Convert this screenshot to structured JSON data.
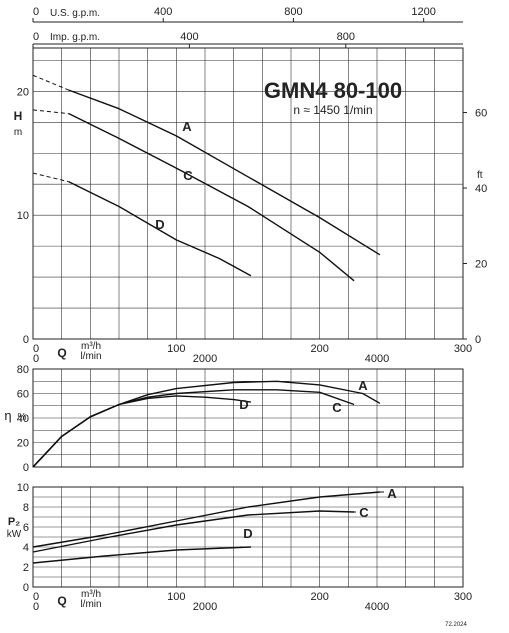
{
  "title": "GMN4 80-100",
  "subtitle": "n ≈ 1450 1/min",
  "code": "72.2024",
  "top_axes": {
    "usgpm": {
      "label": "U.S. g.p.m.",
      "ticks": [
        "0",
        "400",
        "800",
        "1200"
      ],
      "values": [
        0,
        400,
        800,
        1200
      ]
    },
    "impgpm": {
      "label": "Imp. g.p.m.",
      "ticks": [
        "0",
        "400",
        "800"
      ],
      "values": [
        0,
        400,
        800
      ]
    }
  },
  "q_axis": {
    "label": "Q",
    "unit_m3h": "m³/h",
    "unit_lmin": "l/min",
    "m3h_ticks": [
      "0",
      "100",
      "200",
      "300"
    ],
    "m3h_values": [
      0,
      100,
      200,
      300
    ],
    "lmin_ticks": [
      "0",
      "2000",
      "4000"
    ],
    "lmin_values": [
      0,
      2000,
      4000
    ]
  },
  "chart_data": [
    {
      "type": "line",
      "panel": "head",
      "ylabel_symbol": "H",
      "ylabel_unit": "m",
      "ylim": [
        0,
        23.5
      ],
      "xlim": [
        0,
        300
      ],
      "y_ticks": [
        "0",
        "10",
        "20"
      ],
      "y_values": [
        0,
        10,
        20
      ],
      "y2_label": "ft",
      "y2_ticks": [
        "0",
        "20",
        "40",
        "60"
      ],
      "y2_values": [
        0,
        20,
        40,
        60
      ],
      "grid": true,
      "series": [
        {
          "name": "A",
          "x": [
            25,
            60,
            100,
            150,
            200,
            242
          ],
          "y": [
            20.1,
            18.6,
            16.4,
            13.1,
            9.8,
            6.8
          ],
          "dashed_from_x": 0,
          "dashed_from_y": 21.3
        },
        {
          "name": "C",
          "x": [
            25,
            60,
            100,
            150,
            200,
            224
          ],
          "y": [
            18.2,
            16.2,
            13.8,
            10.7,
            7.0,
            4.7
          ],
          "dashed_from_x": 0,
          "dashed_from_y": 18.5
        },
        {
          "name": "D",
          "x": [
            25,
            60,
            100,
            130,
            152
          ],
          "y": [
            12.7,
            10.7,
            8.0,
            6.5,
            5.1
          ],
          "dashed_from_x": 0,
          "dashed_from_y": 13.4
        }
      ]
    },
    {
      "type": "line",
      "panel": "efficiency",
      "ylabel_symbol": "η",
      "ylabel_unit": "%",
      "ylim": [
        0,
        80
      ],
      "xlim": [
        0,
        300
      ],
      "y_ticks": [
        "0",
        "20",
        "40",
        "60",
        "80"
      ],
      "y_values": [
        0,
        20,
        40,
        60,
        80
      ],
      "grid": true,
      "series": [
        {
          "name": "A",
          "x": [
            0,
            20,
            40,
            60,
            80,
            100,
            140,
            170,
            200,
            230,
            242
          ],
          "y": [
            0,
            25,
            41,
            51,
            59,
            64,
            69,
            70,
            67,
            60,
            52
          ]
        },
        {
          "name": "C",
          "x": [
            0,
            20,
            40,
            60,
            80,
            100,
            140,
            170,
            200,
            224
          ],
          "y": [
            0,
            25,
            41,
            51,
            57,
            60,
            63,
            63,
            61,
            51
          ]
        },
        {
          "name": "D",
          "x": [
            0,
            20,
            40,
            60,
            80,
            100,
            120,
            140,
            152
          ],
          "y": [
            0,
            25,
            41,
            51,
            56,
            58,
            57,
            55,
            53
          ]
        }
      ]
    },
    {
      "type": "line",
      "panel": "power",
      "ylabel_symbol": "P₂",
      "ylabel_unit": "kW",
      "ylim": [
        0,
        10
      ],
      "xlim": [
        0,
        300
      ],
      "y_ticks": [
        "0",
        "2",
        "4",
        "6",
        "8",
        "10"
      ],
      "y_values": [
        0,
        2,
        4,
        6,
        8,
        10
      ],
      "grid": true,
      "series": [
        {
          "name": "A",
          "x": [
            0,
            50,
            100,
            150,
            200,
            242
          ],
          "y": [
            4.0,
            5.2,
            6.6,
            8.0,
            9.0,
            9.5
          ]
        },
        {
          "name": "C",
          "x": [
            0,
            50,
            100,
            150,
            200,
            224
          ],
          "y": [
            3.5,
            4.9,
            6.2,
            7.2,
            7.6,
            7.5
          ]
        },
        {
          "name": "D",
          "x": [
            0,
            50,
            100,
            152
          ],
          "y": [
            2.4,
            3.1,
            3.7,
            4.0
          ]
        }
      ]
    }
  ]
}
